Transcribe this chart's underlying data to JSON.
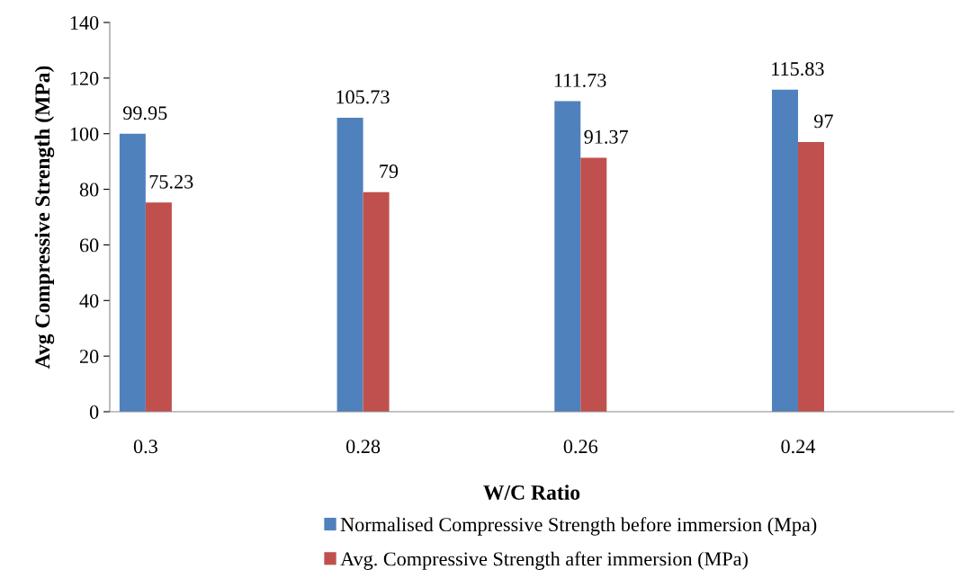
{
  "chart_data": {
    "type": "bar",
    "xlabel": "W/C Ratio",
    "ylabel": "Avg Compressive Strength (MPa)",
    "categories": [
      "0.3",
      "0.28",
      "0.26",
      "0.24"
    ],
    "series": [
      {
        "name": "Normalised Compressive Strength before immersion (Mpa)",
        "color": "#4f81bd",
        "values": [
          99.95,
          105.73,
          111.73,
          115.83
        ]
      },
      {
        "name": "Avg. Compressive Strength after immersion (MPa)",
        "color": "#c0504d",
        "values": [
          75.23,
          79,
          91.37,
          97
        ]
      }
    ],
    "ylim": [
      0,
      140
    ],
    "yticks": [
      0,
      20,
      40,
      60,
      80,
      100,
      120,
      140
    ],
    "data_labels": true,
    "grid": false,
    "legend": "bottom"
  }
}
